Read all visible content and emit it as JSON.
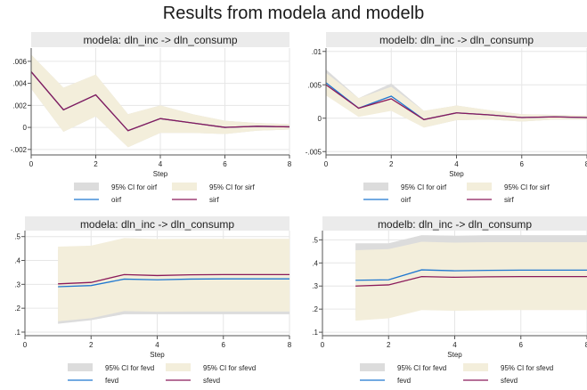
{
  "title": "Results from modela and modelb",
  "colors": {
    "ci_gray": "#dcdcdc",
    "ci_beige": "#f3eedb",
    "line_blue": "#1f77d0",
    "line_purple": "#8b1a5a",
    "panel_header": "#ebebeb",
    "grid": "#e6e6e6"
  },
  "chart_data": [
    {
      "type": "line",
      "title": "modela: dln_inc -> dln_consump",
      "xlabel": "Step",
      "xlim": [
        0,
        8
      ],
      "ylim": [
        -0.0025,
        0.0072
      ],
      "xticks": [
        0,
        2,
        4,
        6,
        8
      ],
      "xtick_labels": [
        "0",
        "2",
        "4",
        "6",
        "8"
      ],
      "yticks": [
        -0.002,
        0,
        0.002,
        0.004,
        0.006
      ],
      "ytick_labels": [
        "-.002",
        "0",
        ".002",
        ".004",
        ".006"
      ],
      "grid": true,
      "legend_placement": "bottom",
      "x": [
        0,
        1,
        2,
        3,
        4,
        5,
        6,
        7,
        8
      ],
      "series": [
        {
          "name": "oirf",
          "role": "line",
          "color": "line_blue",
          "values": [
            0.00505,
            0.0016,
            0.00295,
            -0.0003,
            0.0008,
            0.0004,
            0.0,
            0.0001,
            5e-05
          ]
        },
        {
          "name": "sirf",
          "role": "line",
          "color": "line_purple",
          "values": [
            0.00505,
            0.0016,
            0.00295,
            -0.0003,
            0.0008,
            0.0004,
            0.0,
            0.0001,
            5e-05
          ]
        }
      ],
      "bands": [
        {
          "name": "95% CI for oirf",
          "color": "ci_gray",
          "lower": [
            0.0035,
            -0.0004,
            0.001,
            -0.0018,
            -0.0005,
            -0.0005,
            -0.0006,
            -0.0003,
            -0.0002
          ],
          "upper": [
            0.0066,
            0.0036,
            0.0048,
            0.0012,
            0.002,
            0.0012,
            0.0006,
            0.0004,
            0.0003
          ]
        },
        {
          "name": "95% CI for sirf",
          "color": "ci_beige",
          "lower": [
            0.0035,
            -0.0004,
            0.001,
            -0.0018,
            -0.0005,
            -0.0005,
            -0.0006,
            -0.0003,
            -0.0002
          ],
          "upper": [
            0.0066,
            0.0036,
            0.0048,
            0.0012,
            0.002,
            0.0012,
            0.0006,
            0.0004,
            0.0003
          ]
        }
      ],
      "legend": [
        {
          "label": "95% CI for oirf",
          "kind": "box",
          "color": "ci_gray"
        },
        {
          "label": "95% CI for sirf",
          "kind": "box",
          "color": "ci_beige"
        },
        {
          "label": "oirf",
          "kind": "line",
          "color": "line_blue"
        },
        {
          "label": "sirf",
          "kind": "line",
          "color": "line_purple"
        }
      ]
    },
    {
      "type": "line",
      "title": "modelb: dln_inc -> dln_consump",
      "xlabel": "Step",
      "xlim": [
        0,
        8
      ],
      "ylim": [
        -0.0055,
        0.0105
      ],
      "xticks": [
        0,
        2,
        4,
        6,
        8
      ],
      "xtick_labels": [
        "0",
        "2",
        "4",
        "6",
        "8"
      ],
      "yticks": [
        -0.005,
        0,
        0.005,
        0.01
      ],
      "ytick_labels": [
        "-.005",
        "0",
        ".005",
        ".01"
      ],
      "grid": true,
      "legend_placement": "bottom",
      "x": [
        0,
        1,
        2,
        3,
        4,
        5,
        6,
        7,
        8
      ],
      "series": [
        {
          "name": "oirf",
          "role": "line",
          "color": "line_blue",
          "values": [
            0.0053,
            0.0015,
            0.0033,
            -0.0002,
            0.0008,
            0.0005,
            0.0001,
            0.0002,
            0.0001
          ]
        },
        {
          "name": "sirf",
          "role": "line",
          "color": "line_purple",
          "values": [
            0.005,
            0.0015,
            0.0029,
            -0.0002,
            0.0008,
            0.0005,
            0.0001,
            0.0002,
            0.0001
          ]
        }
      ],
      "bands": [
        {
          "name": "95% CI for oirf",
          "color": "ci_gray",
          "lower": [
            0.0036,
            0.0002,
            0.0014,
            -0.0014,
            -0.0003,
            -0.0002,
            -0.0005,
            -0.0002,
            -0.0002
          ],
          "upper": [
            0.0073,
            0.003,
            0.0052,
            0.0011,
            0.0019,
            0.0012,
            0.0006,
            0.0005,
            0.0004
          ]
        },
        {
          "name": "95% CI for sirf",
          "color": "ci_beige",
          "lower": [
            0.0034,
            0.0002,
            0.0011,
            -0.0014,
            -0.0003,
            -0.0002,
            -0.0005,
            -0.0002,
            -0.0002
          ],
          "upper": [
            0.0068,
            0.003,
            0.0047,
            0.0011,
            0.0019,
            0.0012,
            0.0006,
            0.0005,
            0.0004
          ]
        }
      ],
      "legend": [
        {
          "label": "95% CI for oirf",
          "kind": "box",
          "color": "ci_gray"
        },
        {
          "label": "95% CI for sirf",
          "kind": "box",
          "color": "ci_beige"
        },
        {
          "label": "oirf",
          "kind": "line",
          "color": "line_blue"
        },
        {
          "label": "sirf",
          "kind": "line",
          "color": "line_purple"
        }
      ]
    },
    {
      "type": "line",
      "title": "modela: dln_inc -> dln_consump",
      "xlabel": "Step",
      "xlim": [
        0,
        8
      ],
      "ylim": [
        0.085,
        0.525
      ],
      "xticks": [
        0,
        2,
        4,
        6,
        8
      ],
      "xtick_labels": [
        "0",
        "2",
        "4",
        "6",
        "8"
      ],
      "yticks": [
        0.1,
        0.2,
        0.3,
        0.4,
        0.5
      ],
      "ytick_labels": [
        ".1",
        ".2",
        ".3",
        ".4",
        ".5"
      ],
      "grid": true,
      "legend_placement": "bottom",
      "x": [
        1,
        2,
        3,
        4,
        5,
        6,
        7,
        8
      ],
      "series": [
        {
          "name": "fevd",
          "role": "line",
          "color": "line_blue",
          "values": [
            0.29,
            0.295,
            0.322,
            0.319,
            0.322,
            0.323,
            0.323,
            0.323
          ]
        },
        {
          "name": "sfevd",
          "role": "line",
          "color": "line_purple",
          "values": [
            0.302,
            0.308,
            0.341,
            0.337,
            0.34,
            0.341,
            0.341,
            0.341
          ]
        }
      ],
      "bands": [
        {
          "name": "95% CI for fevd",
          "color": "ci_gray",
          "lower": [
            0.135,
            0.15,
            0.175,
            0.175,
            0.175,
            0.175,
            0.175,
            0.175
          ],
          "upper": [
            0.445,
            0.445,
            0.475,
            0.47,
            0.47,
            0.47,
            0.47,
            0.47
          ]
        },
        {
          "name": "95% CI for sfevd",
          "color": "ci_beige",
          "lower": [
            0.145,
            0.158,
            0.188,
            0.185,
            0.186,
            0.186,
            0.186,
            0.186
          ],
          "upper": [
            0.458,
            0.462,
            0.494,
            0.49,
            0.491,
            0.491,
            0.491,
            0.491
          ]
        }
      ],
      "legend": [
        {
          "label": "95% CI for fevd",
          "kind": "box",
          "color": "ci_gray"
        },
        {
          "label": "95% CI for sfevd",
          "kind": "box",
          "color": "ci_beige"
        },
        {
          "label": "fevd",
          "kind": "line",
          "color": "line_blue"
        },
        {
          "label": "sfevd",
          "kind": "line",
          "color": "line_purple"
        }
      ]
    },
    {
      "type": "line",
      "title": "modelb: dln_inc -> dln_consump",
      "xlabel": "Step",
      "xlim": [
        0,
        8
      ],
      "ylim": [
        0.085,
        0.54
      ],
      "xticks": [
        0,
        2,
        4,
        6,
        8
      ],
      "xtick_labels": [
        "0",
        "2",
        "4",
        "6",
        "8"
      ],
      "yticks": [
        0.1,
        0.2,
        0.3,
        0.4,
        0.5
      ],
      "ytick_labels": [
        ".1",
        ".2",
        ".3",
        ".4",
        ".5"
      ],
      "grid": true,
      "legend_placement": "bottom",
      "x": [
        1,
        2,
        3,
        4,
        5,
        6,
        7,
        8
      ],
      "series": [
        {
          "name": "fevd",
          "role": "line",
          "color": "line_blue",
          "values": [
            0.325,
            0.327,
            0.37,
            0.366,
            0.368,
            0.369,
            0.369,
            0.369
          ]
        },
        {
          "name": "sfevd",
          "role": "line",
          "color": "line_purple",
          "values": [
            0.3,
            0.305,
            0.341,
            0.338,
            0.34,
            0.341,
            0.341,
            0.341
          ]
        }
      ],
      "bands": [
        {
          "name": "95% CI for fevd",
          "color": "ci_gray",
          "lower": [
            0.165,
            0.175,
            0.215,
            0.212,
            0.214,
            0.215,
            0.215,
            0.215
          ],
          "upper": [
            0.485,
            0.485,
            0.52,
            0.518,
            0.52,
            0.52,
            0.52,
            0.52
          ]
        },
        {
          "name": "95% CI for sfevd",
          "color": "ci_beige",
          "lower": [
            0.15,
            0.16,
            0.196,
            0.193,
            0.195,
            0.196,
            0.196,
            0.196
          ],
          "upper": [
            0.455,
            0.46,
            0.492,
            0.488,
            0.49,
            0.49,
            0.49,
            0.49
          ]
        }
      ],
      "legend": [
        {
          "label": "95% CI for fevd",
          "kind": "box",
          "color": "ci_gray"
        },
        {
          "label": "95% CI for sfevd",
          "kind": "box",
          "color": "ci_beige"
        },
        {
          "label": "fevd",
          "kind": "line",
          "color": "line_blue"
        },
        {
          "label": "sfevd",
          "kind": "line",
          "color": "line_purple"
        }
      ]
    }
  ]
}
